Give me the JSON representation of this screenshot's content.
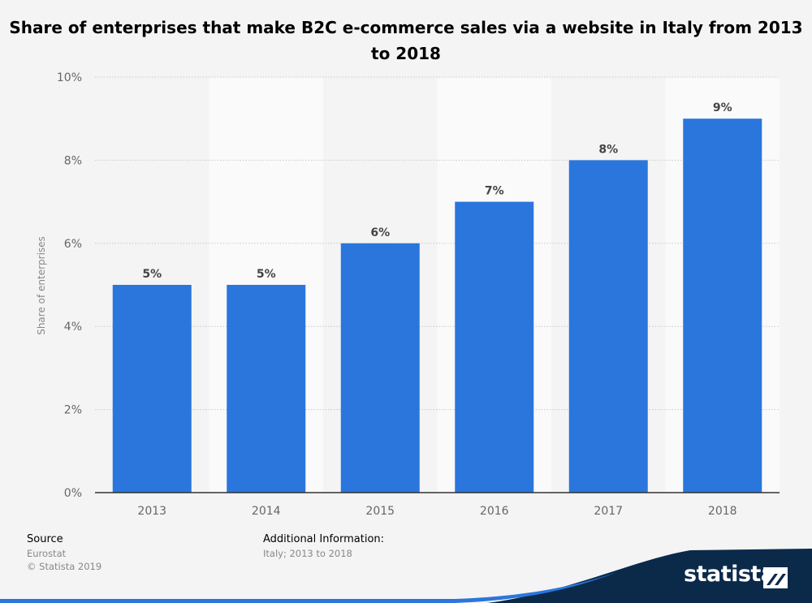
{
  "chart_data": {
    "type": "bar",
    "title": "Share of enterprises that make B2C e-commerce sales via a website in Italy from 2013 to 2018",
    "categories": [
      "2013",
      "2014",
      "2015",
      "2016",
      "2017",
      "2018"
    ],
    "values": [
      5,
      5,
      6,
      7,
      8,
      9
    ],
    "data_labels": [
      "5%",
      "5%",
      "6%",
      "7%",
      "8%",
      "9%"
    ],
    "ylabel": "Share of enterprises",
    "xlabel": "",
    "ylim": [
      0,
      10
    ],
    "yticks": [
      0,
      2,
      4,
      6,
      8,
      10
    ],
    "ytick_labels": [
      "0%",
      "2%",
      "4%",
      "6%",
      "8%",
      "10%"
    ],
    "grid": true,
    "legend": "none",
    "bar_color": "#2a76dd"
  },
  "footer": {
    "source_heading": "Source",
    "source_name": "Eurostat",
    "copyright": "© Statista 2019",
    "info_heading": "Additional Information:",
    "info_text": "Italy; 2013 to 2018"
  },
  "brand": {
    "name": "statista",
    "color": "#0b2a4a",
    "accent": "#2a76dd"
  }
}
